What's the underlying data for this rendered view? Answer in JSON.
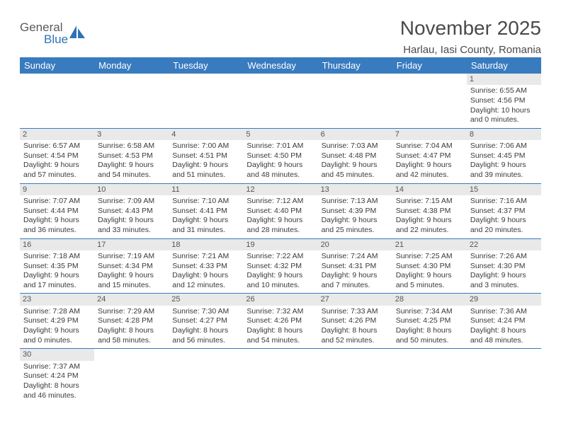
{
  "logo": {
    "text1": "General",
    "text2": "Blue"
  },
  "title": "November 2025",
  "location": "Harlau, Iasi County, Romania",
  "header_bg": "#387bbf",
  "header_text_color": "#ffffff",
  "daynum_bg": "#e9e9e9",
  "row_border_color": "#387bbf",
  "body_text_color": "#3a3a3a",
  "columns": [
    "Sunday",
    "Monday",
    "Tuesday",
    "Wednesday",
    "Thursday",
    "Friday",
    "Saturday"
  ],
  "weeks": [
    [
      null,
      null,
      null,
      null,
      null,
      null,
      {
        "n": "1",
        "sr": "6:55 AM",
        "ss": "4:56 PM",
        "dh": "10",
        "dm": "0"
      }
    ],
    [
      {
        "n": "2",
        "sr": "6:57 AM",
        "ss": "4:54 PM",
        "dh": "9",
        "dm": "57"
      },
      {
        "n": "3",
        "sr": "6:58 AM",
        "ss": "4:53 PM",
        "dh": "9",
        "dm": "54"
      },
      {
        "n": "4",
        "sr": "7:00 AM",
        "ss": "4:51 PM",
        "dh": "9",
        "dm": "51"
      },
      {
        "n": "5",
        "sr": "7:01 AM",
        "ss": "4:50 PM",
        "dh": "9",
        "dm": "48"
      },
      {
        "n": "6",
        "sr": "7:03 AM",
        "ss": "4:48 PM",
        "dh": "9",
        "dm": "45"
      },
      {
        "n": "7",
        "sr": "7:04 AM",
        "ss": "4:47 PM",
        "dh": "9",
        "dm": "42"
      },
      {
        "n": "8",
        "sr": "7:06 AM",
        "ss": "4:45 PM",
        "dh": "9",
        "dm": "39"
      }
    ],
    [
      {
        "n": "9",
        "sr": "7:07 AM",
        "ss": "4:44 PM",
        "dh": "9",
        "dm": "36"
      },
      {
        "n": "10",
        "sr": "7:09 AM",
        "ss": "4:43 PM",
        "dh": "9",
        "dm": "33"
      },
      {
        "n": "11",
        "sr": "7:10 AM",
        "ss": "4:41 PM",
        "dh": "9",
        "dm": "31"
      },
      {
        "n": "12",
        "sr": "7:12 AM",
        "ss": "4:40 PM",
        "dh": "9",
        "dm": "28"
      },
      {
        "n": "13",
        "sr": "7:13 AM",
        "ss": "4:39 PM",
        "dh": "9",
        "dm": "25"
      },
      {
        "n": "14",
        "sr": "7:15 AM",
        "ss": "4:38 PM",
        "dh": "9",
        "dm": "22"
      },
      {
        "n": "15",
        "sr": "7:16 AM",
        "ss": "4:37 PM",
        "dh": "9",
        "dm": "20"
      }
    ],
    [
      {
        "n": "16",
        "sr": "7:18 AM",
        "ss": "4:35 PM",
        "dh": "9",
        "dm": "17"
      },
      {
        "n": "17",
        "sr": "7:19 AM",
        "ss": "4:34 PM",
        "dh": "9",
        "dm": "15"
      },
      {
        "n": "18",
        "sr": "7:21 AM",
        "ss": "4:33 PM",
        "dh": "9",
        "dm": "12"
      },
      {
        "n": "19",
        "sr": "7:22 AM",
        "ss": "4:32 PM",
        "dh": "9",
        "dm": "10"
      },
      {
        "n": "20",
        "sr": "7:24 AM",
        "ss": "4:31 PM",
        "dh": "9",
        "dm": "7"
      },
      {
        "n": "21",
        "sr": "7:25 AM",
        "ss": "4:30 PM",
        "dh": "9",
        "dm": "5"
      },
      {
        "n": "22",
        "sr": "7:26 AM",
        "ss": "4:30 PM",
        "dh": "9",
        "dm": "3"
      }
    ],
    [
      {
        "n": "23",
        "sr": "7:28 AM",
        "ss": "4:29 PM",
        "dh": "9",
        "dm": "0"
      },
      {
        "n": "24",
        "sr": "7:29 AM",
        "ss": "4:28 PM",
        "dh": "8",
        "dm": "58"
      },
      {
        "n": "25",
        "sr": "7:30 AM",
        "ss": "4:27 PM",
        "dh": "8",
        "dm": "56"
      },
      {
        "n": "26",
        "sr": "7:32 AM",
        "ss": "4:26 PM",
        "dh": "8",
        "dm": "54"
      },
      {
        "n": "27",
        "sr": "7:33 AM",
        "ss": "4:26 PM",
        "dh": "8",
        "dm": "52"
      },
      {
        "n": "28",
        "sr": "7:34 AM",
        "ss": "4:25 PM",
        "dh": "8",
        "dm": "50"
      },
      {
        "n": "29",
        "sr": "7:36 AM",
        "ss": "4:24 PM",
        "dh": "8",
        "dm": "48"
      }
    ],
    [
      {
        "n": "30",
        "sr": "7:37 AM",
        "ss": "4:24 PM",
        "dh": "8",
        "dm": "46"
      },
      null,
      null,
      null,
      null,
      null,
      null
    ]
  ],
  "labels": {
    "sunrise": "Sunrise:",
    "sunset": "Sunset:",
    "daylight": "Daylight:",
    "hours": "hours",
    "and": "and",
    "minutes": "minutes."
  }
}
